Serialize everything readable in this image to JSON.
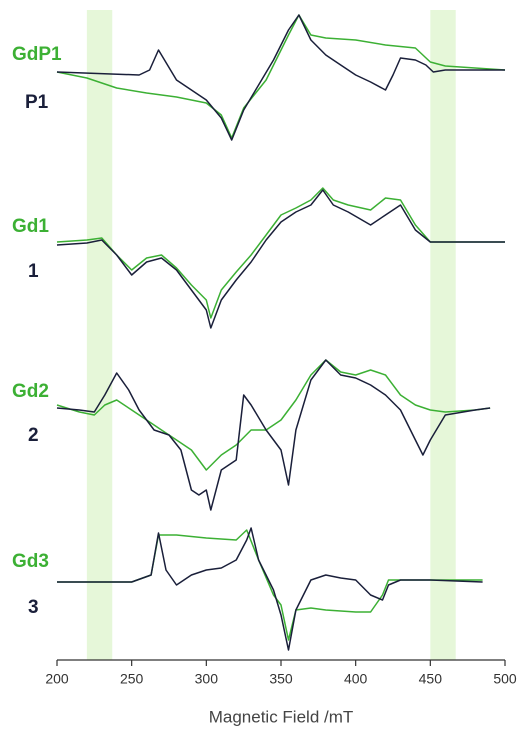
{
  "chart_data": {
    "type": "line",
    "xlabel": "Magnetic Field /mT",
    "xlim": [
      200,
      500
    ],
    "xticks": [
      200,
      250,
      300,
      350,
      400,
      450,
      500
    ],
    "ylim": [
      0,
      650
    ],
    "shaded_regions": [
      [
        220,
        237
      ],
      [
        450,
        467
      ]
    ],
    "shade_color": "#e6f7d9",
    "series": [
      {
        "name": "GdP1",
        "color": "#3cb034",
        "x": [
          200,
          220,
          240,
          260,
          280,
          300,
          310,
          317,
          325,
          340,
          355,
          362,
          370,
          380,
          400,
          420,
          440,
          450,
          460,
          500
        ],
        "values": [
          588,
          582,
          572,
          567,
          563,
          557,
          545,
          522,
          552,
          580,
          625,
          645,
          625,
          622,
          620,
          615,
          612,
          598,
          594,
          590
        ]
      },
      {
        "name": "P1",
        "color": "#1a1f3a",
        "x": [
          200,
          255,
          262,
          268,
          280,
          290,
          300,
          310,
          317,
          325,
          335,
          345,
          355,
          362,
          370,
          380,
          390,
          400,
          410,
          420,
          425,
          430,
          440,
          447,
          452,
          460,
          500
        ],
        "values": [
          588,
          585,
          590,
          610,
          580,
          570,
          560,
          542,
          520,
          550,
          575,
          600,
          630,
          645,
          620,
          605,
          595,
          585,
          578,
          570,
          585,
          602,
          600,
          595,
          588,
          590,
          590
        ]
      },
      {
        "name": "Gd1",
        "color": "#3cb034",
        "x": [
          200,
          220,
          230,
          240,
          250,
          260,
          270,
          280,
          290,
          300,
          303,
          310,
          320,
          330,
          340,
          350,
          360,
          370,
          378,
          385,
          395,
          410,
          420,
          430,
          440,
          450,
          470,
          500
        ],
        "values": [
          418,
          420,
          422,
          405,
          390,
          402,
          405,
          392,
          375,
          360,
          342,
          370,
          388,
          405,
          425,
          445,
          452,
          460,
          472,
          460,
          455,
          450,
          462,
          460,
          435,
          418,
          418,
          418
        ]
      },
      {
        "name": "1",
        "color": "#1a1f3a",
        "x": [
          200,
          220,
          230,
          240,
          250,
          260,
          270,
          280,
          290,
          300,
          303,
          310,
          320,
          330,
          340,
          350,
          360,
          370,
          378,
          385,
          395,
          410,
          420,
          430,
          440,
          450,
          470,
          500
        ],
        "values": [
          415,
          417,
          420,
          405,
          385,
          398,
          402,
          390,
          370,
          350,
          332,
          360,
          380,
          398,
          420,
          438,
          448,
          455,
          470,
          455,
          448,
          435,
          445,
          455,
          430,
          418,
          418,
          418
        ]
      },
      {
        "name": "Gd2",
        "color": "#3cb034",
        "x": [
          200,
          215,
          225,
          232,
          240,
          250,
          260,
          270,
          280,
          290,
          300,
          310,
          320,
          330,
          340,
          350,
          360,
          370,
          380,
          390,
          400,
          410,
          420,
          430,
          440,
          450,
          460,
          480,
          490
        ],
        "values": [
          255,
          248,
          245,
          255,
          260,
          250,
          240,
          230,
          220,
          210,
          190,
          205,
          215,
          230,
          230,
          240,
          260,
          285,
          300,
          288,
          285,
          290,
          285,
          265,
          255,
          250,
          248,
          250,
          252
        ]
      },
      {
        "name": "2",
        "color": "#1a1f3a",
        "x": [
          200,
          215,
          225,
          232,
          240,
          248,
          255,
          265,
          275,
          283,
          290,
          295,
          300,
          303,
          310,
          320,
          325,
          330,
          340,
          350,
          355,
          360,
          370,
          380,
          390,
          400,
          410,
          420,
          430,
          440,
          445,
          450,
          460,
          480,
          490
        ],
        "values": [
          252,
          250,
          248,
          265,
          287,
          270,
          250,
          230,
          225,
          210,
          170,
          165,
          170,
          150,
          190,
          200,
          265,
          255,
          230,
          210,
          175,
          230,
          280,
          300,
          285,
          282,
          275,
          265,
          250,
          220,
          205,
          220,
          245,
          250,
          252
        ]
      },
      {
        "name": "Gd3",
        "color": "#3cb034",
        "x": [
          200,
          250,
          263,
          268,
          280,
          300,
          320,
          327,
          335,
          345,
          350,
          355,
          360,
          370,
          380,
          400,
          410,
          418,
          422,
          450,
          485
        ],
        "values": [
          78,
          78,
          85,
          125,
          125,
          122,
          120,
          130,
          100,
          65,
          55,
          20,
          50,
          52,
          50,
          48,
          48,
          65,
          80,
          80,
          80
        ]
      },
      {
        "name": "3",
        "color": "#1a1f3a",
        "x": [
          200,
          250,
          263,
          268,
          273,
          280,
          290,
          300,
          310,
          320,
          327,
          330,
          335,
          345,
          350,
          355,
          360,
          370,
          380,
          390,
          400,
          410,
          418,
          422,
          430,
          450,
          485
        ],
        "values": [
          78,
          78,
          85,
          127,
          90,
          75,
          85,
          90,
          92,
          100,
          120,
          132,
          100,
          70,
          45,
          10,
          50,
          80,
          85,
          82,
          80,
          65,
          60,
          75,
          80,
          80,
          78
        ]
      }
    ]
  }
}
